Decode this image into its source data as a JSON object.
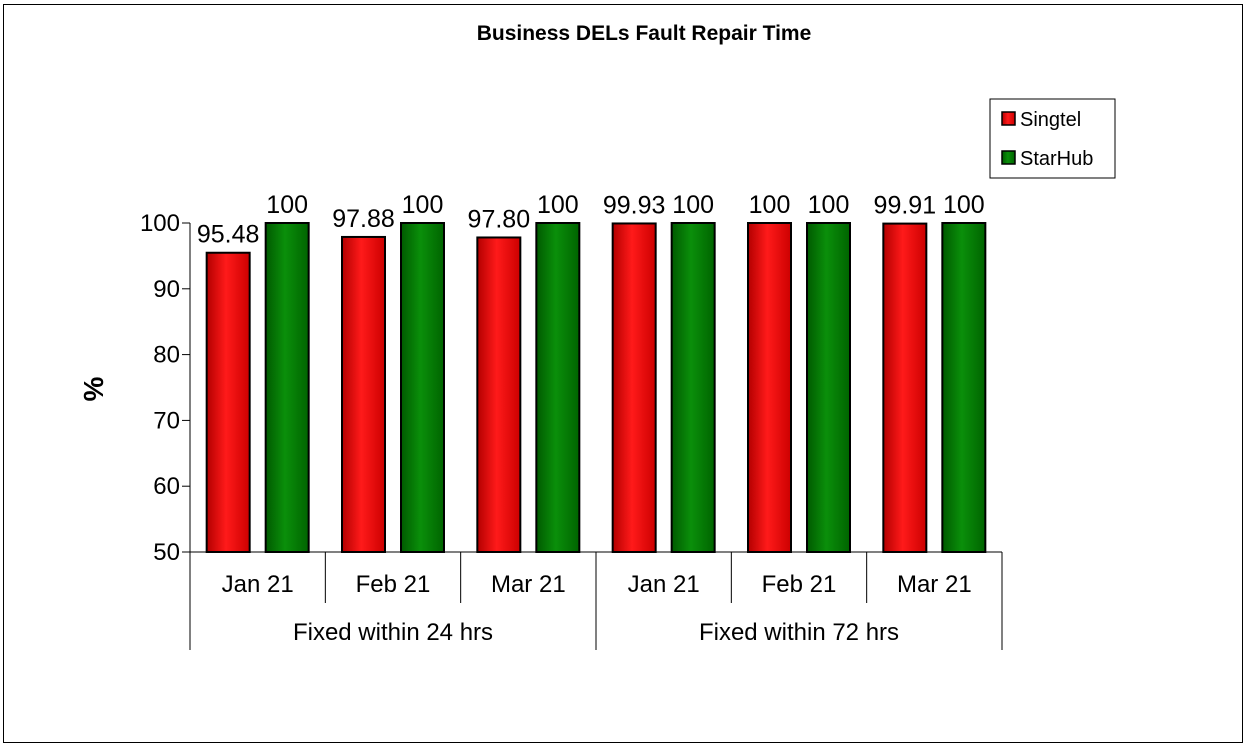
{
  "chart_data": {
    "type": "bar",
    "title": "Business DELs Fault Repair Time",
    "ylabel": "%",
    "ylim": [
      50,
      100
    ],
    "yticks": [
      50,
      60,
      70,
      80,
      90,
      100
    ],
    "grid": false,
    "legend_position": "top-right",
    "categories": [
      "Jan 21",
      "Feb 21",
      "Mar 21",
      "Jan 21",
      "Feb 21",
      "Mar 21"
    ],
    "groups": [
      {
        "label": "Fixed within 24 hrs",
        "span": 3
      },
      {
        "label": "Fixed within 72 hrs",
        "span": 3
      }
    ],
    "series": [
      {
        "name": "Singtel",
        "color": "#ff0000",
        "values": [
          95.48,
          97.88,
          97.8,
          99.93,
          100,
          99.91
        ],
        "labels": [
          "95.48",
          "97.88",
          "97.80",
          "99.93",
          "100",
          "99.91"
        ]
      },
      {
        "name": "StarHub",
        "color": "#008000",
        "values": [
          100,
          100,
          100,
          100,
          100,
          100
        ],
        "labels": [
          "100",
          "100",
          "100",
          "100",
          "100",
          "100"
        ]
      }
    ]
  }
}
